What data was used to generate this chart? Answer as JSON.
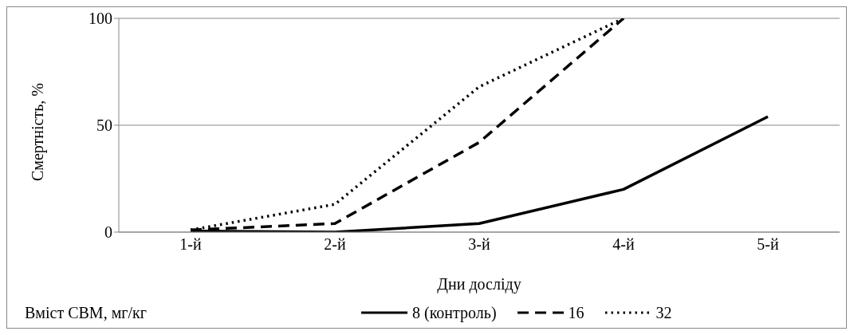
{
  "chart_data": {
    "type": "line",
    "xlabel": "Дни досліду",
    "ylabel": "Смертність, %",
    "legend_title": "Вміст СВМ, мг/кг",
    "categories": [
      "1-й",
      "2-й",
      "3-й",
      "4-й",
      "5-й"
    ],
    "series": [
      {
        "name": "8 (контроль)",
        "color": "#000000",
        "line_style": "solid",
        "values": [
          0.5,
          0,
          4,
          20,
          54
        ]
      },
      {
        "name": "16",
        "color": "#000000",
        "line_style": "dashed",
        "values": [
          1,
          4,
          42,
          100,
          null
        ]
      },
      {
        "name": "32",
        "color": "#000000",
        "line_style": "dotted",
        "values": [
          1,
          13,
          68,
          100,
          null
        ]
      }
    ],
    "ylim": [
      0,
      100
    ],
    "yticks": [
      0,
      50,
      100
    ],
    "grid": "y",
    "legend": "bottom",
    "marker": "none"
  }
}
